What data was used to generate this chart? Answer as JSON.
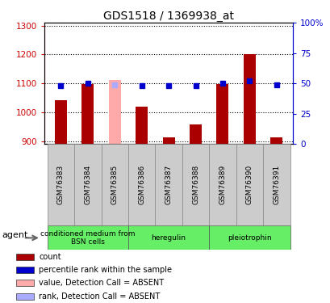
{
  "title": "GDS1518 / 1369938_at",
  "samples": [
    "GSM76383",
    "GSM76384",
    "GSM76385",
    "GSM76386",
    "GSM76387",
    "GSM76388",
    "GSM76389",
    "GSM76390",
    "GSM76391"
  ],
  "bar_values": [
    1042,
    1097,
    1112,
    1020,
    912,
    958,
    1098,
    1202,
    912
  ],
  "bar_colors": [
    "#aa0000",
    "#aa0000",
    "#ffaaaa",
    "#aa0000",
    "#aa0000",
    "#aa0000",
    "#aa0000",
    "#aa0000",
    "#aa0000"
  ],
  "rank_values": [
    48,
    50,
    49,
    48,
    48,
    48,
    50,
    52,
    49
  ],
  "rank_colors": [
    "#0000cc",
    "#0000cc",
    "#aaaaff",
    "#0000cc",
    "#0000cc",
    "#0000cc",
    "#0000cc",
    "#0000cc",
    "#0000cc"
  ],
  "ylim_left": [
    890,
    1310
  ],
  "ylim_right": [
    0,
    100
  ],
  "yticks_left": [
    900,
    1000,
    1100,
    1200,
    1300
  ],
  "yticks_right": [
    0,
    25,
    50,
    75,
    100
  ],
  "yticklabels_right": [
    "0",
    "25",
    "50",
    "75",
    "100%"
  ],
  "groups": [
    {
      "label": "conditioned medium from\nBSN cells",
      "start": 0,
      "end": 3,
      "color": "#66ee66"
    },
    {
      "label": "heregulin",
      "start": 3,
      "end": 6,
      "color": "#66ee66"
    },
    {
      "label": "pleiotrophin",
      "start": 6,
      "end": 9,
      "color": "#66ee66"
    }
  ],
  "agent_label": "agent",
  "left_color": "#cc0000",
  "right_color": "#0000cc",
  "bar_width": 0.45,
  "baseline": 890,
  "legend_items": [
    {
      "color": "#aa0000",
      "label": "count"
    },
    {
      "color": "#0000cc",
      "label": "percentile rank within the sample"
    },
    {
      "color": "#ffaaaa",
      "label": "value, Detection Call = ABSENT"
    },
    {
      "color": "#aaaaff",
      "label": "rank, Detection Call = ABSENT"
    }
  ]
}
